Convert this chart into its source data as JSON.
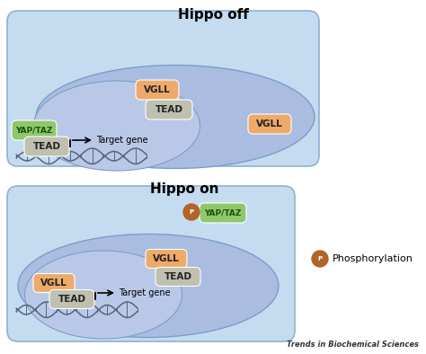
{
  "fig_w": 4.74,
  "fig_h": 3.94,
  "bg_white": "#ffffff",
  "panel_bg": "#c5dcf0",
  "cell_fill": "#aabde0",
  "cell_edge": "#7a9ec8",
  "nucleus_fill_top": "#bac8e8",
  "nucleus_fill_bot": "#bac8e8",
  "vgll_color": "#eeaa6a",
  "tead_color": "#c0c0b0",
  "yap_color": "#8ec86a",
  "phospho_color": "#b06428",
  "title_top": "Hippo off",
  "title_bottom": "Hippo on",
  "footer": "Trends in Biochemical Sciences",
  "phospho_label": "Phosphorylation",
  "panel_edge": "#90b0d0"
}
